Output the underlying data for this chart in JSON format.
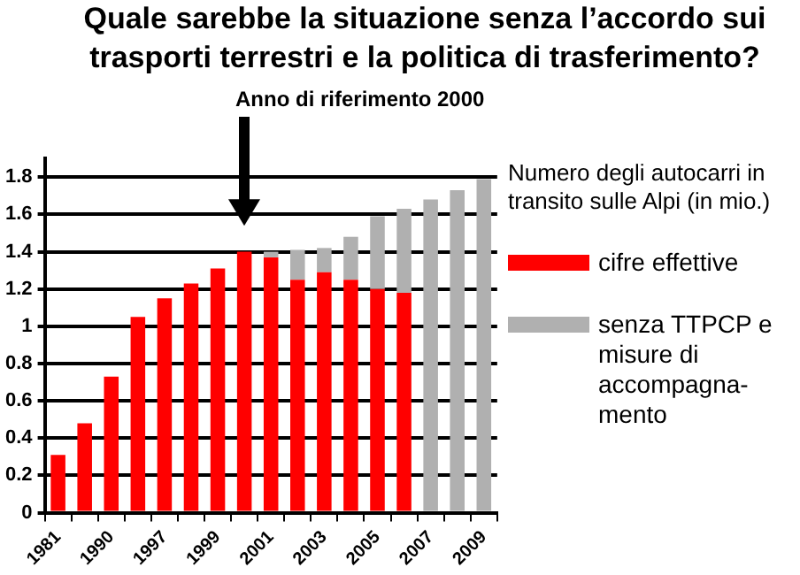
{
  "chart_data": {
    "type": "bar",
    "title": "Quale sarebbe la situazione senza l’accordo sui trasporti terrestri e la politica di trasferimento?",
    "legend_title": "Numero degli autocarri in transito sulle Alpi (in mio.)",
    "annotations": [
      "Anno di riferimento 2000"
    ],
    "categories": [
      "1981",
      null,
      "1990",
      null,
      "1997",
      null,
      "1999",
      null,
      "2001",
      null,
      "2003",
      null,
      "2005",
      null,
      "2007",
      null,
      "2009"
    ],
    "stacked": true,
    "series": [
      {
        "name": "cifre effettive",
        "color": "#ff0000",
        "values": [
          0.31,
          0.48,
          0.73,
          1.05,
          1.15,
          1.23,
          1.31,
          1.4,
          1.37,
          1.25,
          1.29,
          1.25,
          1.2,
          1.18,
          null,
          null,
          null
        ]
      },
      {
        "name": "senza TTPCP e misure di accompagna-mento",
        "color": "#b0b0b0",
        "values": [
          null,
          null,
          null,
          null,
          null,
          null,
          null,
          null,
          0.03,
          0.16,
          0.13,
          0.23,
          0.39,
          0.45,
          1.68,
          1.73,
          1.79
        ]
      }
    ],
    "ylim": [
      0,
      1.9
    ],
    "yticks": [
      0,
      0.2,
      0.4,
      0.6,
      0.8,
      1,
      1.2,
      1.4,
      1.6,
      1.8
    ],
    "grid": "y",
    "legend": "right"
  }
}
